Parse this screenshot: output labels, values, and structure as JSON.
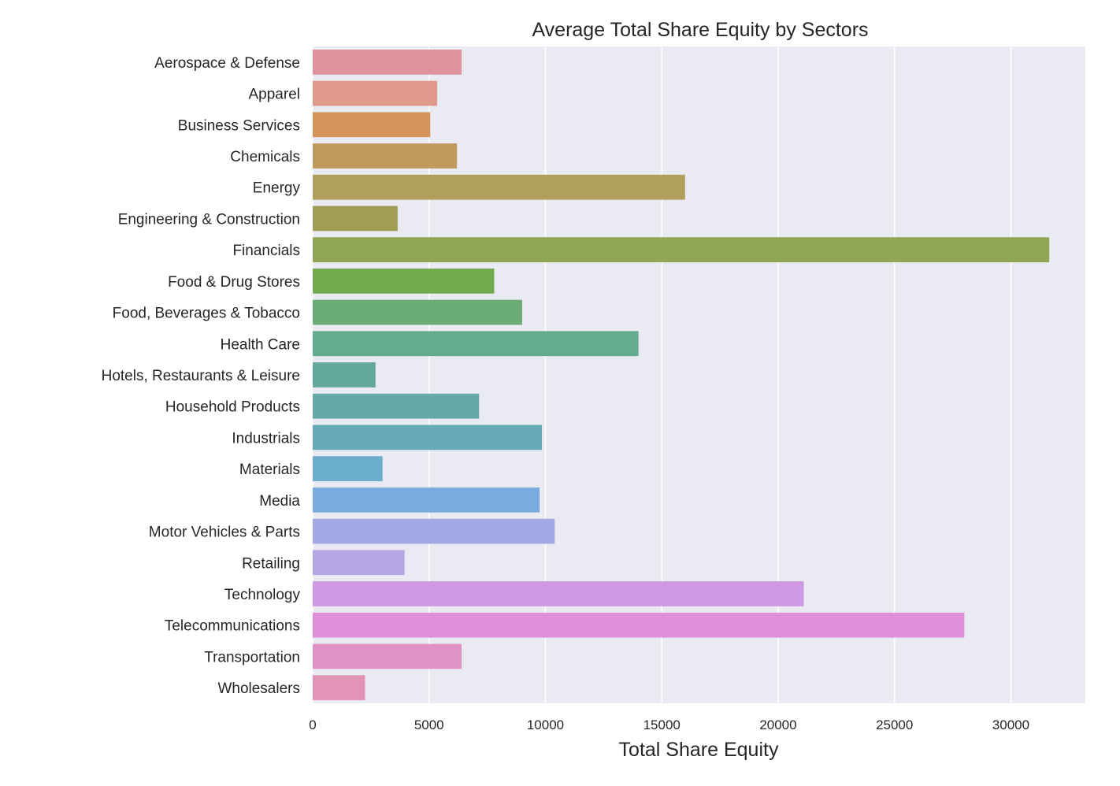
{
  "chart_data": {
    "type": "bar",
    "orientation": "horizontal",
    "title": "Average Total Share Equity by Sectors",
    "xlabel": "Total Share Equity",
    "ylabel": "",
    "xlim": [
      0,
      33200
    ],
    "xticks": [
      0,
      5000,
      10000,
      15000,
      20000,
      25000,
      30000
    ],
    "grid": true,
    "background": "#eaeaf2",
    "categories": [
      "Aerospace & Defense",
      "Apparel",
      "Business Services",
      "Chemicals",
      "Energy",
      "Engineering & Construction",
      "Financials",
      "Food & Drug Stores",
      "Food, Beverages & Tobacco",
      "Health Care",
      "Hotels, Restaurants & Leisure",
      "Household Products",
      "Industrials",
      "Materials",
      "Media",
      "Motor Vehicles & Parts",
      "Retailing",
      "Technology",
      "Telecommunications",
      "Transportation",
      "Wholesalers"
    ],
    "values": [
      6400,
      5350,
      5050,
      6200,
      16000,
      3650,
      31650,
      7800,
      9000,
      14000,
      2700,
      7150,
      9850,
      3000,
      9750,
      10400,
      3950,
      21100,
      28000,
      6400,
      2250
    ],
    "colors": [
      "#e0929f",
      "#e0998a",
      "#d3955a",
      "#c09a5d",
      "#b0a05c",
      "#a09e55",
      "#90a654",
      "#72ab4e",
      "#6bab74",
      "#65ab8d",
      "#64a89a",
      "#64aaa8",
      "#66aab8",
      "#6aadcd",
      "#7bacdf",
      "#a2aae6",
      "#b7a6e6",
      "#cf9ae3",
      "#e08fda",
      "#e092c6",
      "#e194b5"
    ]
  }
}
